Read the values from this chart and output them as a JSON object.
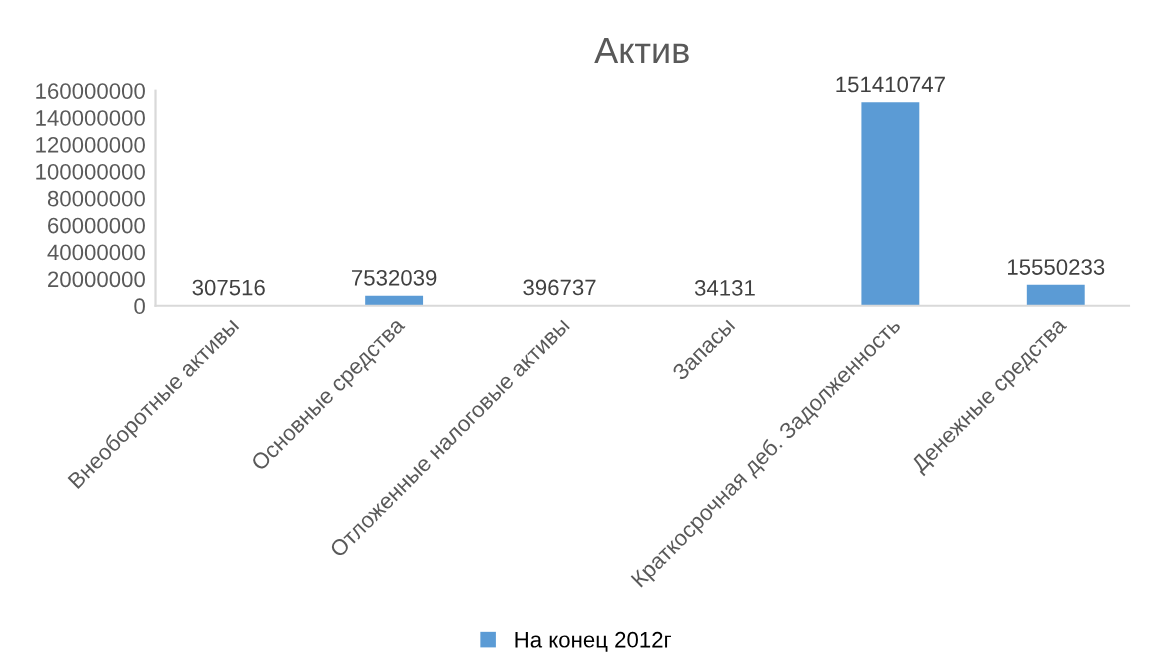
{
  "chart_data": {
    "type": "bar",
    "title": "Актив",
    "categories": [
      "Внеоборотные активы",
      "Основные средства",
      "Отложенные налоговые активы",
      "Запасы",
      "Краткосрочная деб. Задолженность",
      "Денежные средства"
    ],
    "series": [
      {
        "name": "На конец 2012г",
        "color": "#5b9bd5",
        "values": [
          307516,
          7532039,
          396737,
          34131,
          151410747,
          15550233
        ]
      }
    ],
    "ylim": [
      0,
      160000000
    ],
    "yticks": [
      0,
      20000000,
      40000000,
      60000000,
      80000000,
      100000000,
      120000000,
      140000000,
      160000000
    ],
    "data_labels": true,
    "grid": false,
    "legend": "bottom"
  }
}
